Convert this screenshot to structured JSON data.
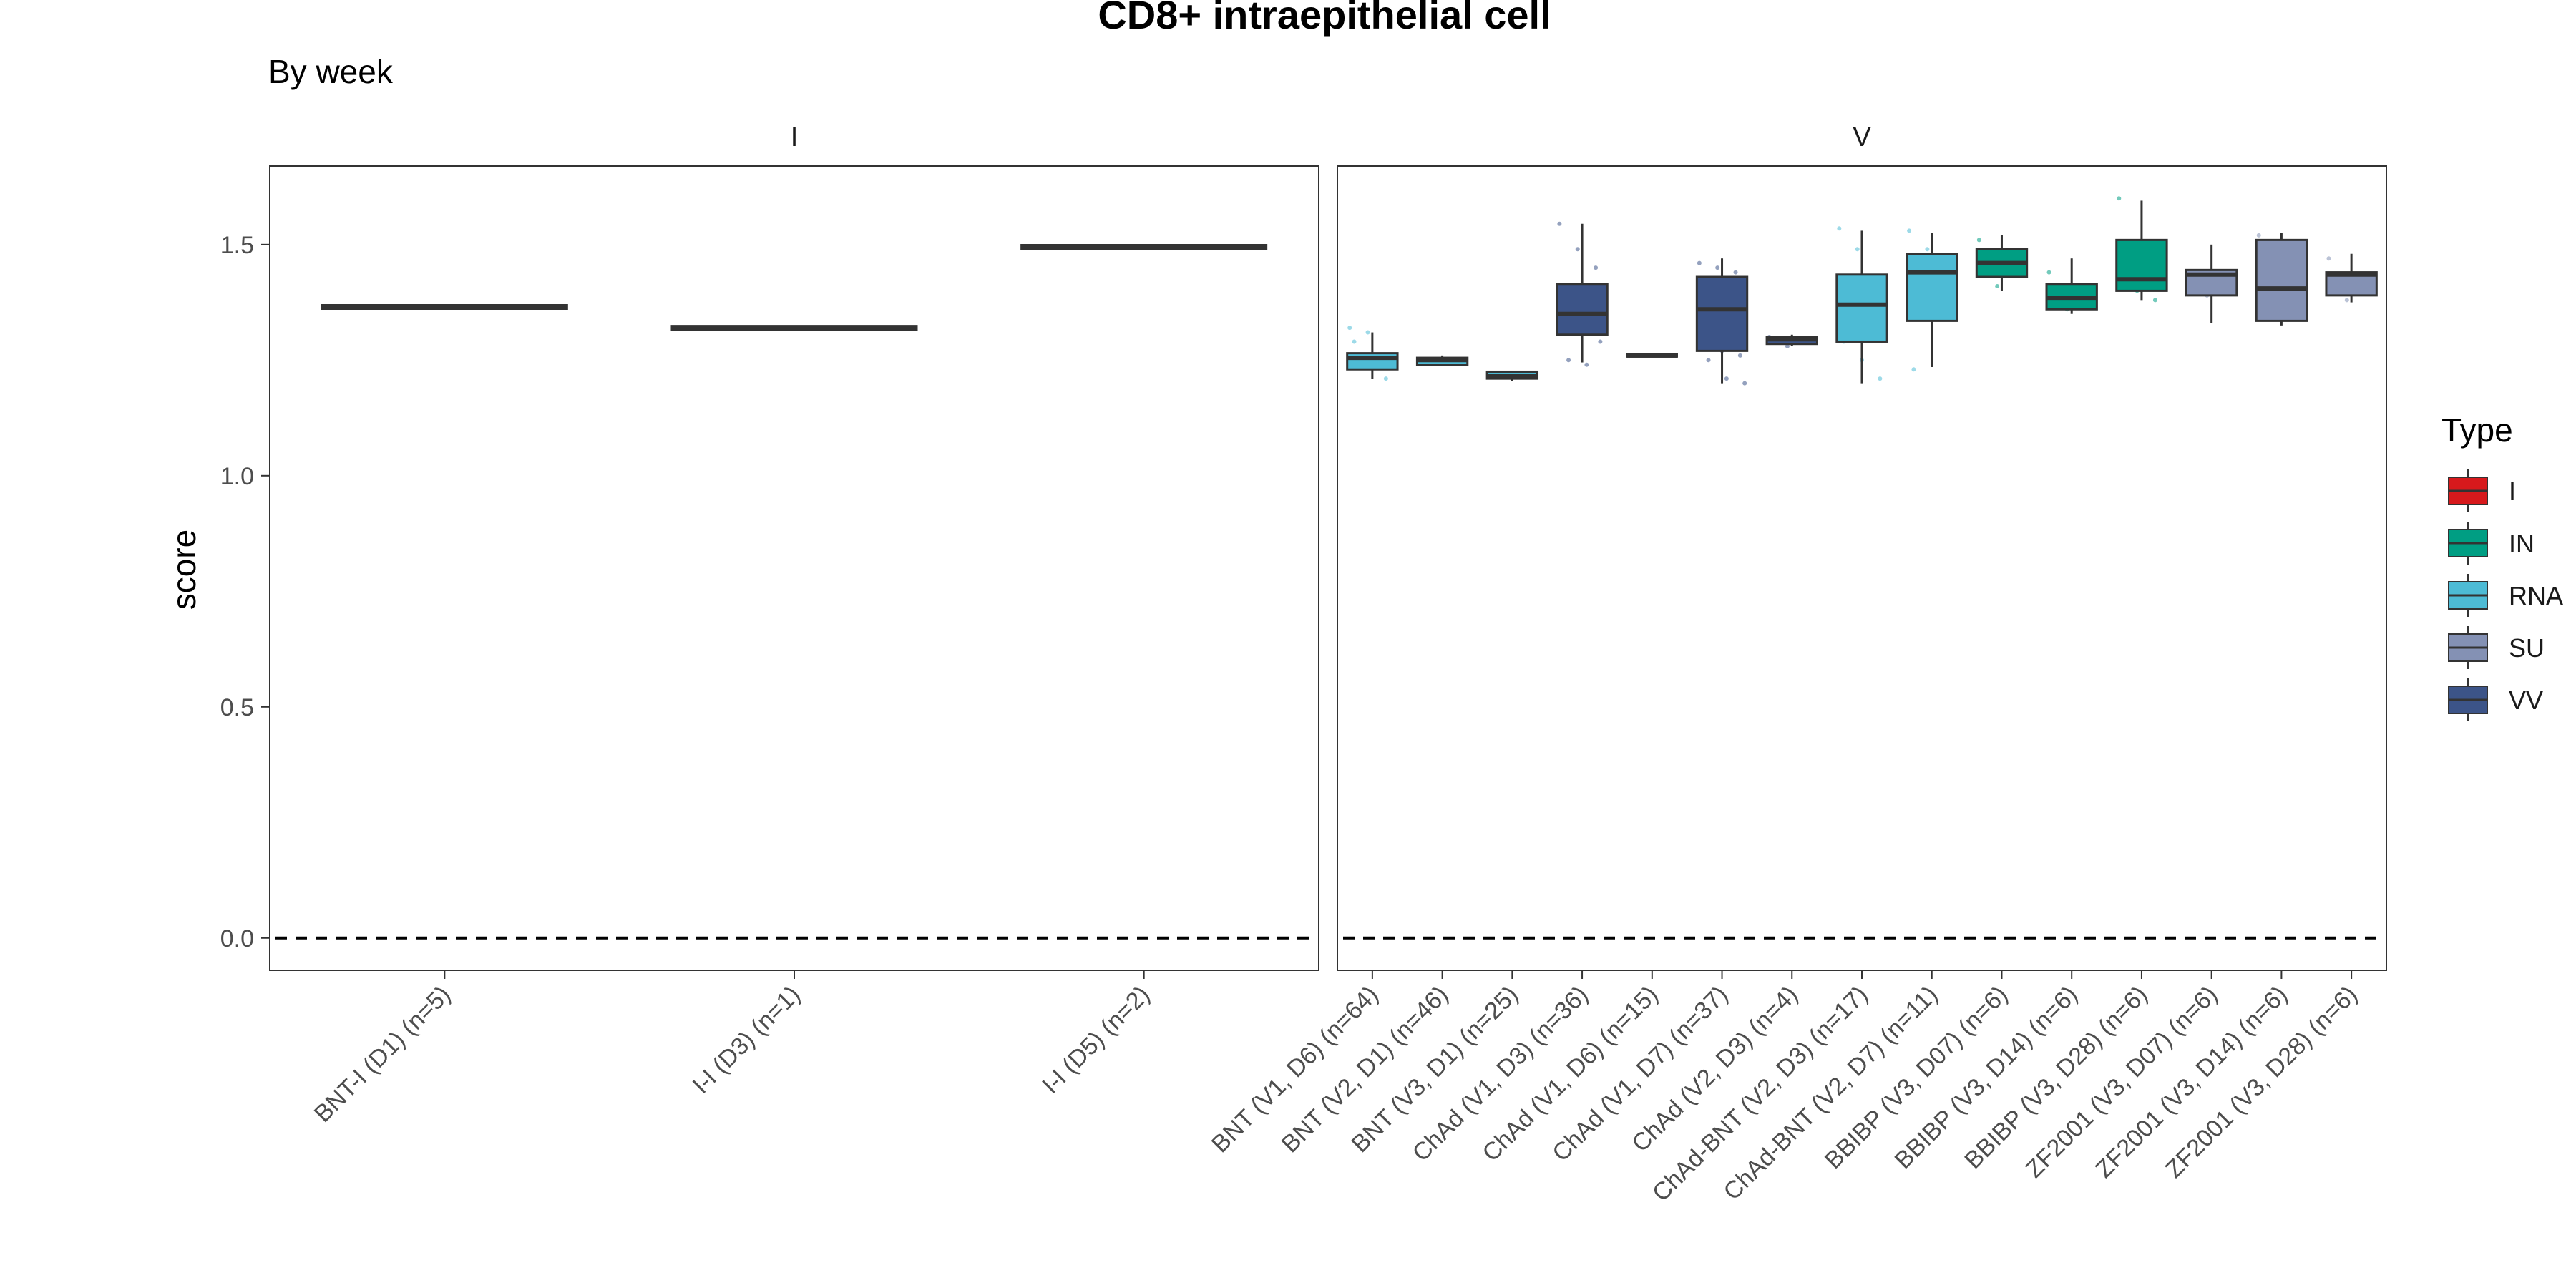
{
  "chart_data": {
    "type": "boxplot",
    "title": "CD8+ intraepithelial cell",
    "subtitle": "By week",
    "ylabel": "score",
    "xlabel": "",
    "ylim": [
      -0.07,
      1.67
    ],
    "yticks": [
      0.0,
      0.5,
      1.0,
      1.5
    ],
    "ytick_labels": [
      "0.0",
      "0.5",
      "1.0",
      "1.5"
    ],
    "reference_line": {
      "y": 0.0,
      "style": "dashed"
    },
    "grid": false,
    "legend": {
      "title": "Type",
      "placement": "right",
      "items": [
        {
          "label": "I",
          "color": "#D7191C"
        },
        {
          "label": "IN",
          "color": "#009E83"
        },
        {
          "label": "RNA",
          "color": "#4DBBD5"
        },
        {
          "label": "SU",
          "color": "#8491B4"
        },
        {
          "label": "VV",
          "color": "#3C5488"
        }
      ]
    },
    "panels": [
      {
        "label": "I",
        "categories": [
          {
            "label": "BNT-I (D1) (n=5)",
            "type": "I",
            "q1": 1.365,
            "median": 1.365,
            "q3": 1.365,
            "whisker_low": 1.365,
            "whisker_high": 1.365,
            "points": []
          },
          {
            "label": "I-I (D3) (n=1)",
            "type": "I",
            "q1": 1.32,
            "median": 1.32,
            "q3": 1.32,
            "whisker_low": 1.32,
            "whisker_high": 1.32,
            "points": []
          },
          {
            "label": "I-I (D5) (n=2)",
            "type": "I",
            "q1": 1.495,
            "median": 1.495,
            "q3": 1.495,
            "whisker_low": 1.495,
            "whisker_high": 1.495,
            "points": []
          }
        ]
      },
      {
        "label": "V",
        "categories": [
          {
            "label": "BNT (V1, D6) (n=64)",
            "type": "RNA",
            "q1": 1.23,
            "median": 1.255,
            "q3": 1.265,
            "whisker_low": 1.21,
            "whisker_high": 1.31,
            "points": [
              1.32,
              1.31,
              1.21,
              1.29
            ]
          },
          {
            "label": "BNT (V2, D1) (n=46)",
            "type": "RNA",
            "q1": 1.24,
            "median": 1.25,
            "q3": 1.255,
            "whisker_low": 1.24,
            "whisker_high": 1.26,
            "points": [
              1.25
            ]
          },
          {
            "label": "BNT (V3, D1) (n=25)",
            "type": "RNA",
            "q1": 1.21,
            "median": 1.215,
            "q3": 1.225,
            "whisker_low": 1.205,
            "whisker_high": 1.225,
            "points": [
              1.22
            ]
          },
          {
            "label": "ChAd (V1, D3) (n=36)",
            "type": "VV",
            "q1": 1.305,
            "median": 1.35,
            "q3": 1.415,
            "whisker_low": 1.245,
            "whisker_high": 1.545,
            "points": [
              1.545,
              1.49,
              1.45,
              1.41,
              1.38,
              1.29,
              1.25,
              1.24
            ]
          },
          {
            "label": "ChAd (V1, D6) (n=15)",
            "type": "VV",
            "q1": 1.26,
            "median": 1.26,
            "q3": 1.26,
            "whisker_low": 1.26,
            "whisker_high": 1.26,
            "points": [
              1.26
            ]
          },
          {
            "label": "ChAd (V1, D7) (n=37)",
            "type": "VV",
            "q1": 1.27,
            "median": 1.36,
            "q3": 1.43,
            "whisker_low": 1.2,
            "whisker_high": 1.47,
            "points": [
              1.46,
              1.45,
              1.44,
              1.42,
              1.27,
              1.26,
              1.25,
              1.21,
              1.2
            ]
          },
          {
            "label": "ChAd (V2, D3) (n=4)",
            "type": "VV",
            "q1": 1.285,
            "median": 1.295,
            "q3": 1.3,
            "whisker_low": 1.28,
            "whisker_high": 1.305,
            "points": [
              1.3,
              1.28
            ]
          },
          {
            "label": "ChAd-BNT (V2, D3) (n=17)",
            "type": "RNA",
            "q1": 1.29,
            "median": 1.37,
            "q3": 1.435,
            "whisker_low": 1.2,
            "whisker_high": 1.53,
            "points": [
              1.535,
              1.49,
              1.41,
              1.29,
              1.25,
              1.21
            ]
          },
          {
            "label": "ChAd-BNT (V2, D7) (n=11)",
            "type": "RNA",
            "q1": 1.335,
            "median": 1.44,
            "q3": 1.48,
            "whisker_low": 1.235,
            "whisker_high": 1.525,
            "points": [
              1.53,
              1.49,
              1.44,
              1.23
            ]
          },
          {
            "label": "BBIBP (V3, D07) (n=6)",
            "type": "IN",
            "q1": 1.43,
            "median": 1.46,
            "q3": 1.49,
            "whisker_low": 1.4,
            "whisker_high": 1.52,
            "points": [
              1.51,
              1.41
            ]
          },
          {
            "label": "BBIBP (V3, D14) (n=6)",
            "type": "IN",
            "q1": 1.36,
            "median": 1.385,
            "q3": 1.415,
            "whisker_low": 1.35,
            "whisker_high": 1.47,
            "points": [
              1.44,
              1.36
            ]
          },
          {
            "label": "BBIBP (V3, D28) (n=6)",
            "type": "IN",
            "q1": 1.4,
            "median": 1.425,
            "q3": 1.51,
            "whisker_low": 1.38,
            "whisker_high": 1.595,
            "points": [
              1.6,
              1.4,
              1.38
            ]
          },
          {
            "label": "ZF2001 (V3, D07) (n=6)",
            "type": "SU",
            "q1": 1.39,
            "median": 1.435,
            "q3": 1.445,
            "whisker_low": 1.33,
            "whisker_high": 1.5,
            "points": [
              1.44,
              1.39
            ]
          },
          {
            "label": "ZF2001 (V3, D14) (n=6)",
            "type": "SU",
            "q1": 1.335,
            "median": 1.405,
            "q3": 1.51,
            "whisker_low": 1.325,
            "whisker_high": 1.525,
            "points": [
              1.52,
              1.34
            ]
          },
          {
            "label": "ZF2001 (V3, D28) (n=6)",
            "type": "SU",
            "q1": 1.39,
            "median": 1.435,
            "q3": 1.44,
            "whisker_low": 1.375,
            "whisker_high": 1.48,
            "points": [
              1.47,
              1.38
            ]
          }
        ]
      }
    ]
  }
}
